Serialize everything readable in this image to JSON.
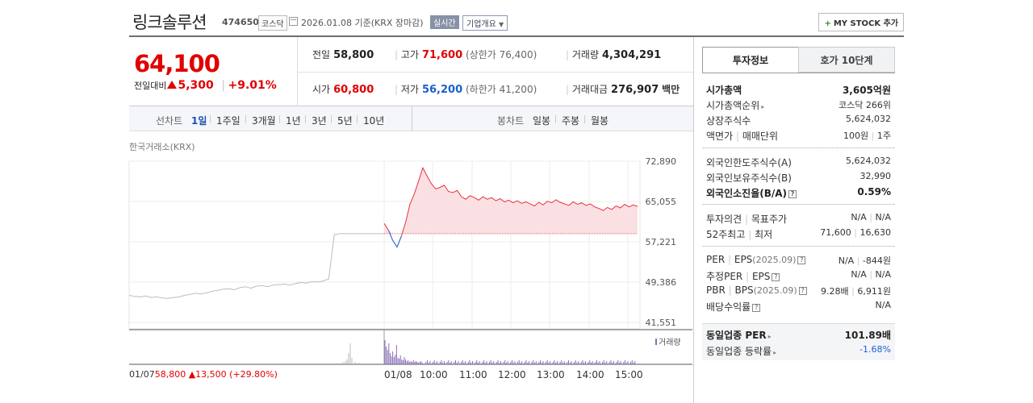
{
  "header": {
    "name": "링크솔루션",
    "code": "474650",
    "market_badge": "코스닥",
    "date_text": "2026.01.08 기준(KRX 장마감)",
    "realtime_label": "실시간",
    "company_info_label": "기업개요",
    "my_stock_label": "MY STOCK 추가"
  },
  "price": {
    "current": "64,100",
    "change_label": "전일대비",
    "change_amount": "5,300",
    "change_pct": "+9.01%"
  },
  "quotes": {
    "prev_label": "전일",
    "prev_value": "58,800",
    "high_label": "고가",
    "high_value": "71,600",
    "upper_limit": "(상한가 76,400)",
    "volume_label": "거래량",
    "volume_value": "4,304,291",
    "open_label": "시가",
    "open_value": "60,800",
    "low_label": "저가",
    "low_value": "56,200",
    "lower_limit": "(하한가 41,200)",
    "amount_label": "거래대금",
    "amount_value": "276,907",
    "amount_unit": "백만"
  },
  "period_tabs": {
    "line_chart_label": "선차트",
    "items": [
      "1일",
      "1주일",
      "3개월",
      "1년",
      "3년",
      "5년",
      "10년"
    ],
    "active": "1일",
    "candle_label": "봉차트",
    "candle_items": [
      "일봉",
      "주봉",
      "월봉"
    ]
  },
  "chart_source": "한국거래소(KRX)",
  "chart_data": {
    "type": "line",
    "title": "",
    "y_ticks": [
      "72,890",
      "65,055",
      "57,221",
      "49,386",
      "41,551"
    ],
    "ylim": [
      41551,
      72890
    ],
    "baseline": 58800,
    "x_ticks": [
      "01/08",
      "10:00",
      "11:00",
      "12:00",
      "13:00",
      "14:00",
      "15:00"
    ],
    "volume_legend": "거래량",
    "prev_day_series": [
      46800,
      46600,
      46500,
      46700,
      46400,
      46500,
      46300,
      46200,
      46400,
      46500,
      46800,
      47000,
      47200,
      47100,
      47300,
      47600,
      47800,
      48000,
      48100,
      47900,
      48300,
      48500,
      48200,
      48600,
      48700,
      48500,
      48800,
      48900,
      49000,
      48800,
      49100,
      49300,
      49200,
      49500,
      49400,
      49600,
      50000,
      58600,
      58800,
      58800,
      58800,
      58800,
      58800,
      58800,
      58800,
      58800,
      58800
    ],
    "today_series": [
      60800,
      59500,
      57500,
      56200,
      58300,
      61000,
      64500,
      66500,
      69000,
      71600,
      70000,
      68500,
      67500,
      67800,
      68200,
      67000,
      66800,
      67200,
      66000,
      65500,
      66200,
      65800,
      65300,
      66000,
      65500,
      65800,
      65200,
      65600,
      65000,
      65300,
      64800,
      65200,
      64700,
      65000,
      64600,
      64200,
      64900,
      64400,
      65100,
      64800,
      65400,
      64900,
      64600,
      64300,
      65000,
      64500,
      64800,
      64300,
      64600,
      64000,
      63700,
      63300,
      63900,
      63500,
      64200,
      63800,
      64500,
      64000,
      64400,
      64100
    ]
  },
  "footer": {
    "prev_date": "01/07",
    "prev_price": "58,800",
    "prev_change": "13,500",
    "prev_pct": "(+29.80%)"
  },
  "right_tabs": {
    "invest_label": "투자정보",
    "orderbook_label": "호가 10단계"
  },
  "invest": {
    "market_cap_label": "시가총액",
    "market_cap_value": "3,605억원",
    "cap_rank_label": "시가총액순위",
    "cap_rank_value": "코스닥 266위",
    "shares_label": "상장주식수",
    "shares_value": "5,624,032",
    "par_label": "액면가",
    "unit_label": "매매단위",
    "par_value": "100원",
    "unit_value": "1주",
    "foreign_limit_label": "외국인한도주식수(A)",
    "foreign_limit_value": "5,624,032",
    "foreign_hold_label": "외국인보유주식수(B)",
    "foreign_hold_value": "32,990",
    "foreign_rate_label": "외국인소진율(B/A)",
    "foreign_rate_value": "0.59%",
    "opinion_label": "투자의견",
    "target_label": "목표주가",
    "opinion_value": "N/A",
    "target_value": "N/A",
    "w52_high_label": "52주최고",
    "w52_low_label": "최저",
    "w52_high_value": "71,600",
    "w52_low_value": "16,630",
    "per_label": "PER",
    "eps_label": "EPS",
    "eps_period": "(2025.09)",
    "per_value": "N/A",
    "eps_value": "-844원",
    "est_per_label": "추정PER",
    "est_eps_label": "EPS",
    "est_per_value": "N/A",
    "est_eps_value": "N/A",
    "pbr_label": "PBR",
    "bps_label": "BPS",
    "bps_period": "(2025.09)",
    "pbr_value": "9.28배",
    "bps_value": "6,911원",
    "div_label": "배당수익률",
    "div_value": "N/A",
    "sector_per_label": "동일업종 PER",
    "sector_per_value": "101.89배",
    "sector_chg_label": "동일업종 등락률",
    "sector_chg_value": "-1.68%"
  }
}
